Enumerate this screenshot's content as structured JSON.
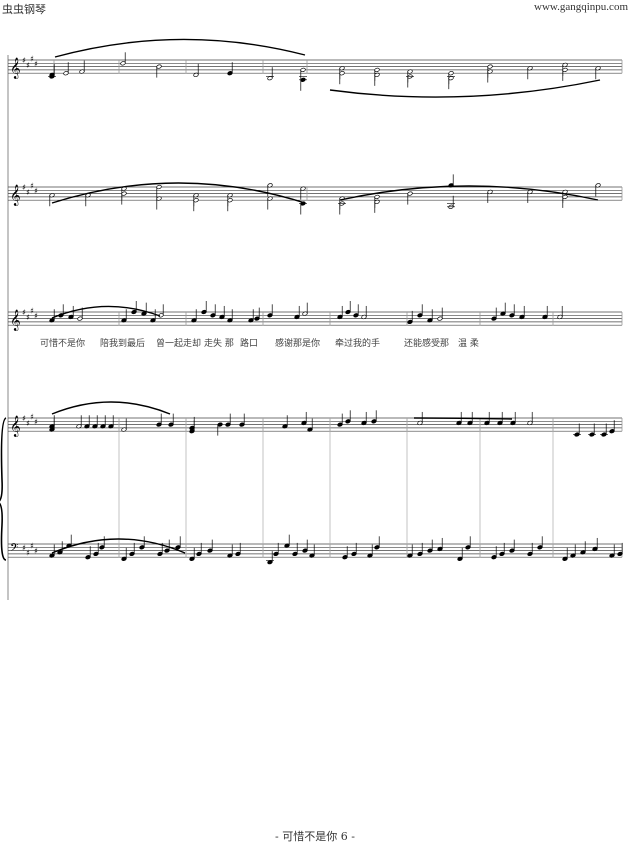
{
  "header": {
    "site_name": "虫虫钢琴",
    "site_url": "www.gangqinpu.com"
  },
  "lyrics": [
    "可惜不是你",
    "陪我到最后",
    "曾一起走却",
    "走失 那",
    "路口",
    "感谢那是你",
    "牵过我的手",
    "还能感受那",
    "温 柔"
  ],
  "score": {
    "key_signature": "E major (4 sharps)",
    "clefs": [
      "treble",
      "treble",
      "treble",
      "treble",
      "bass"
    ]
  },
  "footer": {
    "page_label": "- 可惜不是你 6 -"
  }
}
